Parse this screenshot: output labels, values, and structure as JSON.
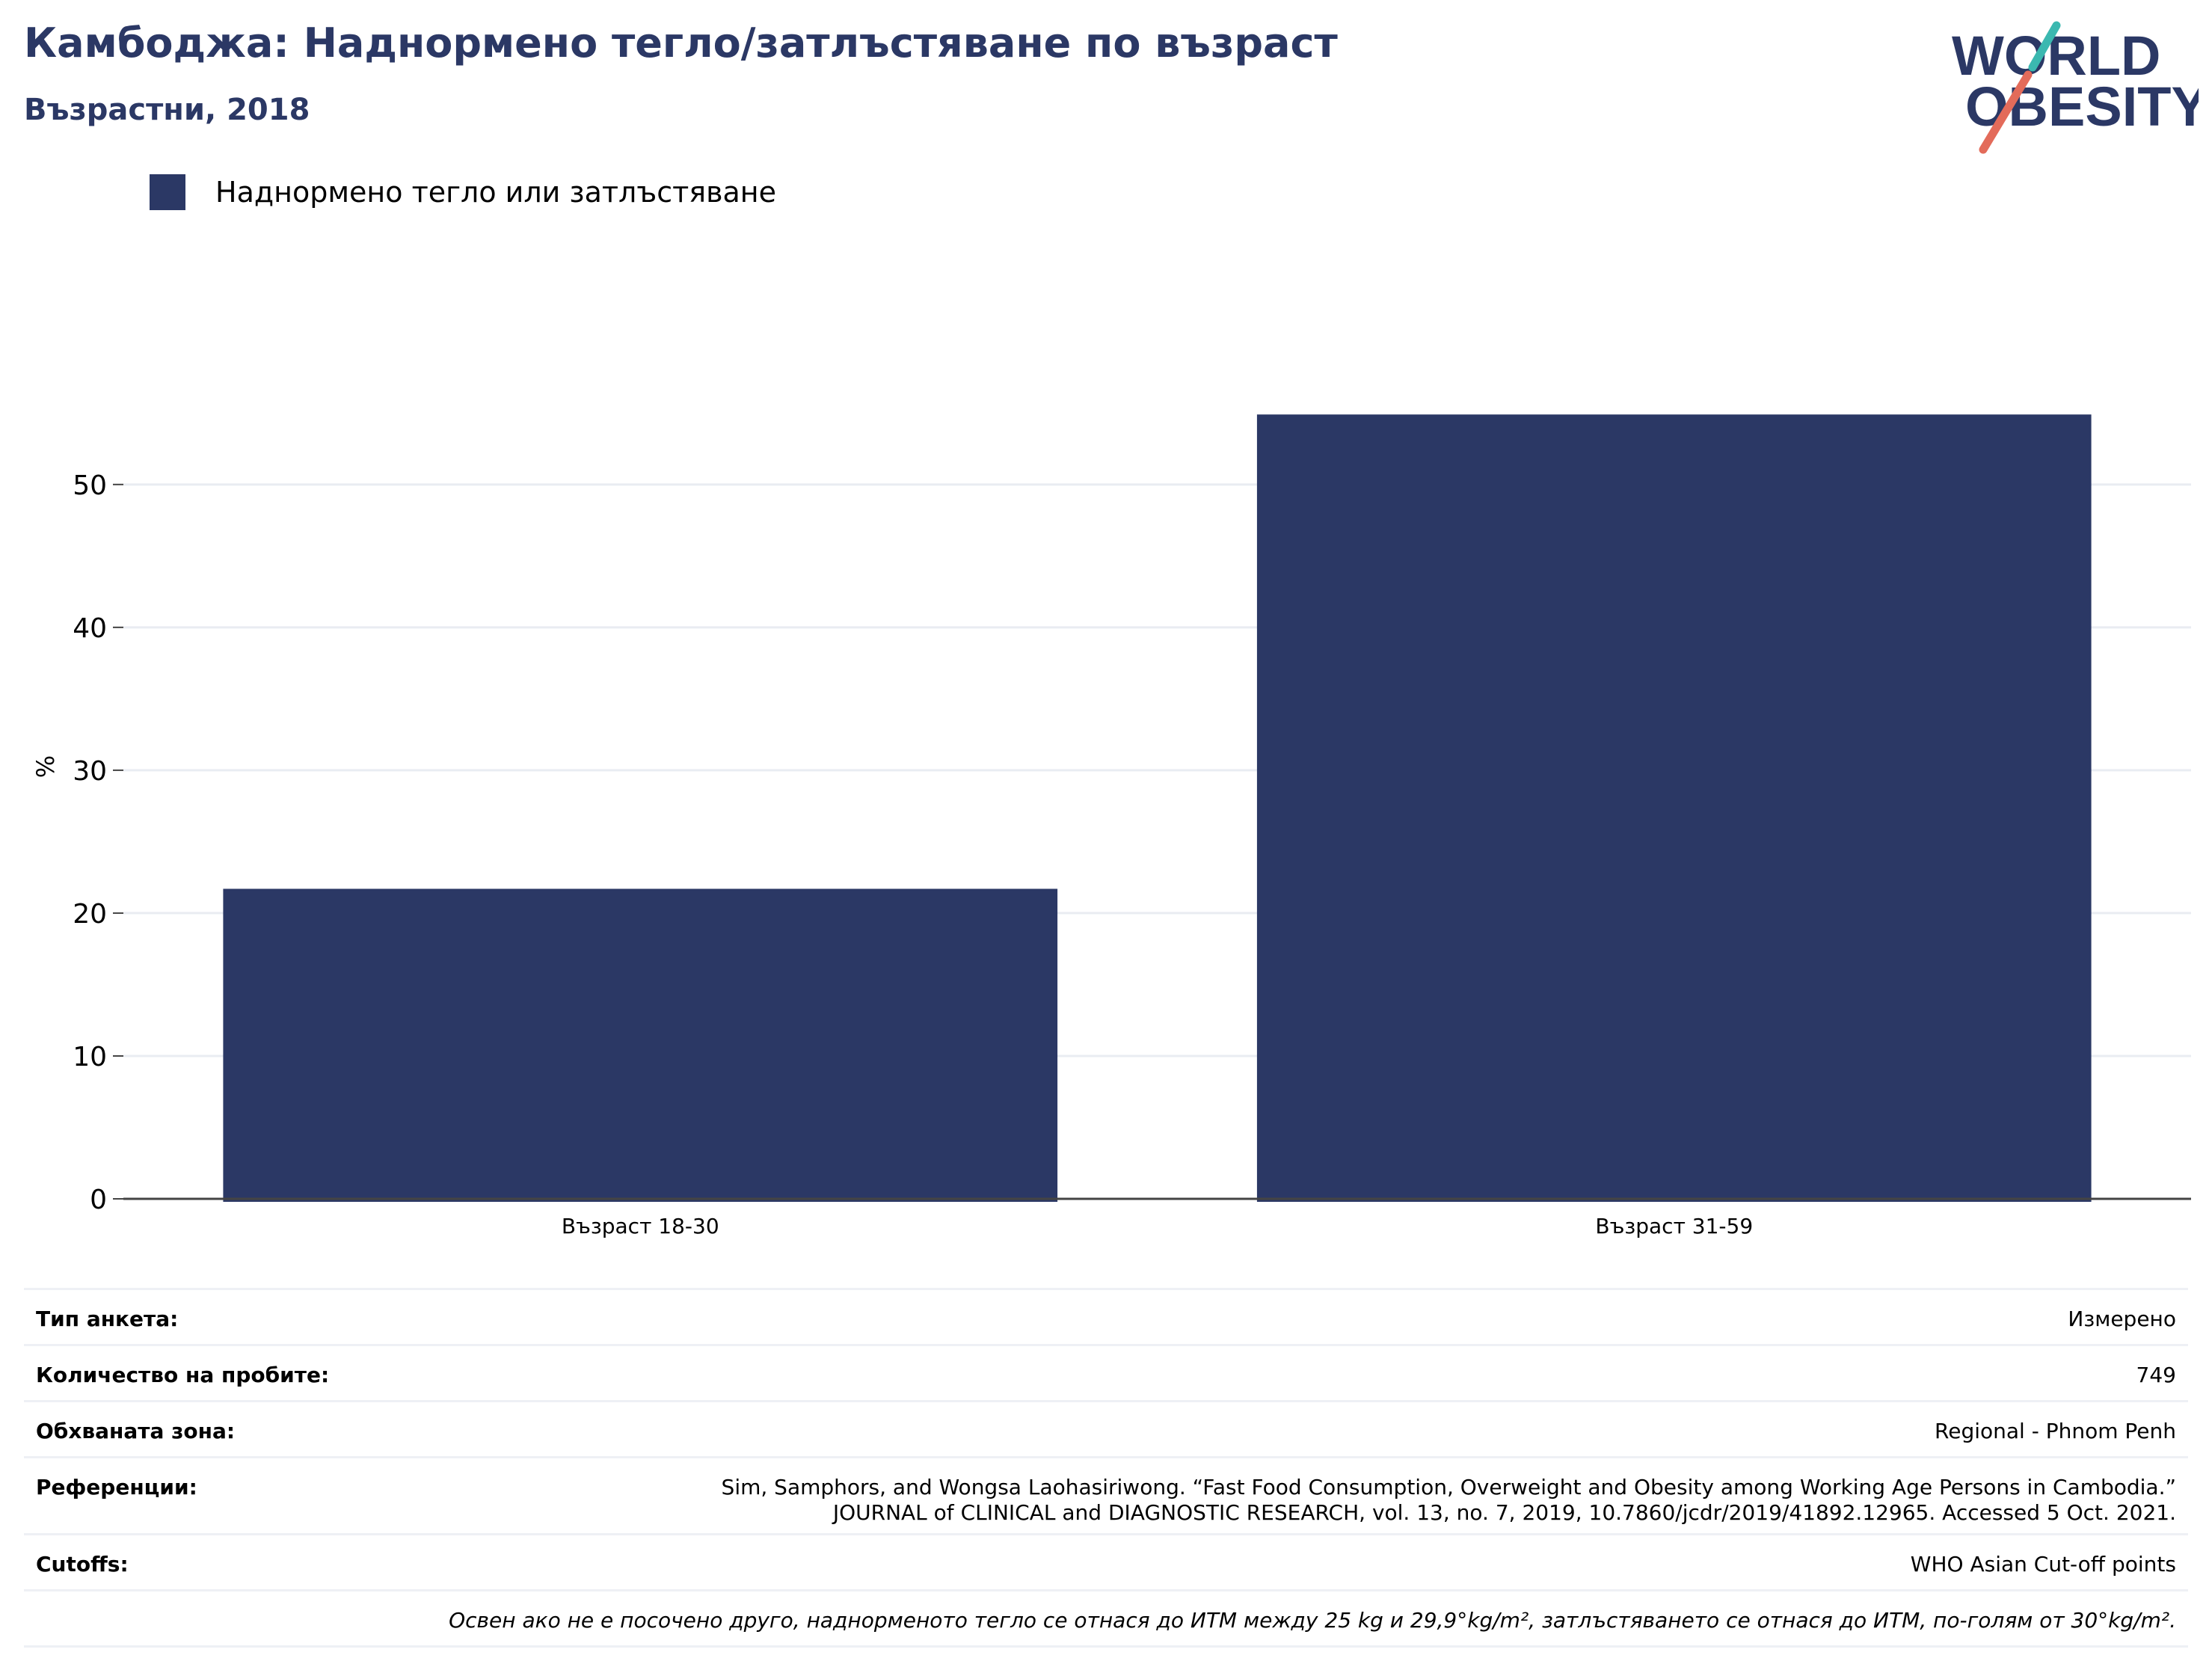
{
  "header": {
    "title": "Камбоджа: Наднормено тегло/затлъстяване по възраст",
    "subtitle": "Възрастни, 2018"
  },
  "logo": {
    "line1": "WORLD",
    "line2": "OBESITY",
    "text_color": "#2b3865",
    "slash_top_color": "#3bb8b0",
    "slash_bottom_color": "#e36b5a"
  },
  "legend": {
    "label": "Наднормено тегло или затлъстяване",
    "color": "#2b3865"
  },
  "chart_data": {
    "type": "bar",
    "categories": [
      "Възраст 18-30",
      "Възраст 31-59"
    ],
    "series": [
      {
        "name": "Наднормено тегло или затлъстяване",
        "values": [
          21.7,
          54.9
        ],
        "color": "#2b3865"
      }
    ],
    "ylabel": "%",
    "xlabel": "",
    "ylim": [
      0,
      58
    ],
    "yticks": [
      0,
      10,
      20,
      30,
      40,
      50
    ],
    "grid": true,
    "legend_position": "top-left"
  },
  "info": {
    "survey_type": {
      "label": "Тип анкета:",
      "value": "Измерено"
    },
    "sample_size": {
      "label": "Количество на пробите:",
      "value": "749"
    },
    "area": {
      "label": "Обхваната зона:",
      "value": "Regional - Phnom Penh"
    },
    "references": {
      "label": "Референции:",
      "line1": "Sim, Samphors, and Wongsa Laohasiriwong. “Fast Food Consumption, Overweight and Obesity among Working Age Persons in Cambodia.”",
      "line2": "JOURNAL of CLINICAL and DIAGNOSTIC RESEARCH, vol. 13, no. 7, 2019, 10.7860/jcdr/2019/41892.12965. Accessed 5 Oct. 2021."
    },
    "cutoffs": {
      "label": "Cutoffs:",
      "value": "WHO Asian Cut-off points"
    },
    "note": "Освен ако не е посочено друго, наднорменото тегло се отнася до ИТМ между 25 kg и 29,9°kg/m², затлъстяването се отнася до ИТМ, по-голям от 30°kg/m²."
  }
}
